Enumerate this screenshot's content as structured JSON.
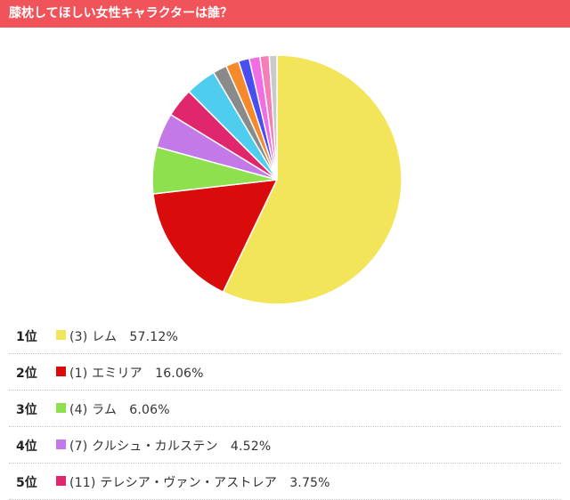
{
  "header": {
    "title": "膝枕してほしい女性キャラクターは誰？"
  },
  "colors": {
    "header_bg": "#f0545a",
    "slices": [
      "#f2e55a",
      "#d90b0b",
      "#8ee04e",
      "#c37ae8",
      "#e0276e",
      "#4fcdef",
      "#8a8a8a",
      "#f7892d",
      "#4a4ef0",
      "#f06de6",
      "#f47eb8",
      "#c9c9c9"
    ]
  },
  "chart_data": {
    "type": "pie",
    "title": "膝枕してほしい女性キャラクターは誰？",
    "slices": [
      {
        "label": "(3) レム",
        "value": 57.12
      },
      {
        "label": "(1) エミリア",
        "value": 16.06
      },
      {
        "label": "(4) ラム",
        "value": 6.06
      },
      {
        "label": "(7) クルシュ・カルステン",
        "value": 4.52
      },
      {
        "label": "(11) テレシア・ヴァン・アストレア",
        "value": 3.75
      },
      {
        "label": "",
        "value": 4.0
      },
      {
        "label": "",
        "value": 1.8
      },
      {
        "label": "",
        "value": 1.7
      },
      {
        "label": "",
        "value": 1.4
      },
      {
        "label": "",
        "value": 1.4
      },
      {
        "label": "",
        "value": 1.2
      },
      {
        "label": "",
        "value": 0.99
      }
    ],
    "start_angle_deg": 0,
    "direction": "clockwise"
  },
  "ranking": [
    {
      "position": "1位",
      "label": "(3) レム",
      "percent": "57.12%",
      "color": "#f2e55a"
    },
    {
      "position": "2位",
      "label": "(1) エミリア",
      "percent": "16.06%",
      "color": "#d90b0b"
    },
    {
      "position": "3位",
      "label": "(4) ラム",
      "percent": "6.06%",
      "color": "#8ee04e"
    },
    {
      "position": "4位",
      "label": "(7) クルシュ・カルステン",
      "percent": "4.52%",
      "color": "#c37ae8"
    },
    {
      "position": "5位",
      "label": "(11) テレシア・ヴァン・アストレア",
      "percent": "3.75%",
      "color": "#e0276e"
    }
  ]
}
